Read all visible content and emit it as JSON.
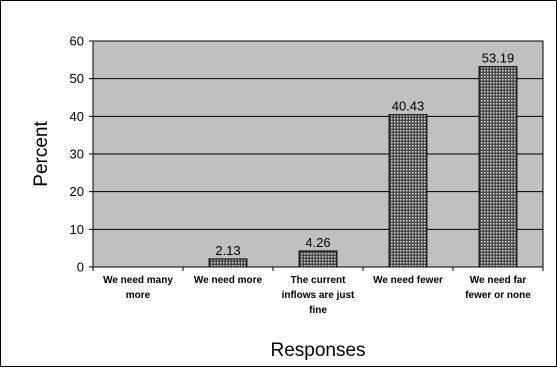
{
  "chart_data": {
    "type": "bar",
    "title": "",
    "xlabel": "Responses",
    "ylabel": "Percent",
    "ylim": [
      0,
      60
    ],
    "yticks": [
      0,
      10,
      20,
      30,
      40,
      50,
      60
    ],
    "grid": true,
    "legend": "none",
    "categories": [
      [
        "We need many",
        "more"
      ],
      [
        "We need more"
      ],
      [
        "The current",
        "inflows are just",
        "fine"
      ],
      [
        "We need fewer"
      ],
      [
        "We need far",
        "fewer or none"
      ]
    ],
    "values": [
      0,
      2.13,
      4.26,
      40.43,
      53.19
    ],
    "data_labels": [
      "",
      "2.13",
      "4.26",
      "40.43",
      "53.19"
    ],
    "colors": {
      "plot_background": "#c0c0c0",
      "bar_fill": "#4a4a4a",
      "bar_pattern": "#d8d8d8",
      "gridline": "#000000"
    }
  }
}
